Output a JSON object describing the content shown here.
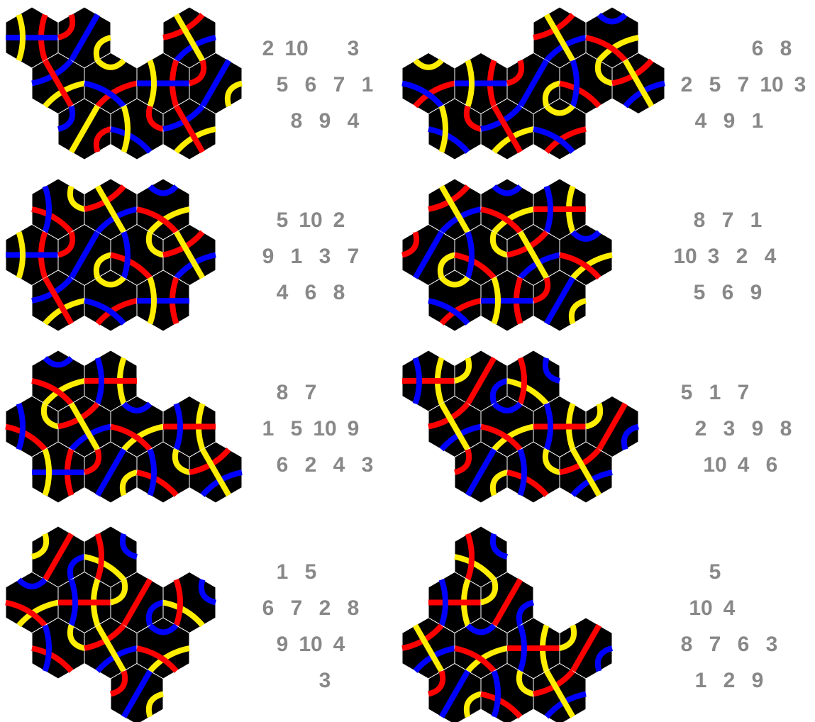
{
  "puzzles": [
    {
      "rows": [
        [
          2,
          10,
          null,
          3
        ],
        [
          5,
          6,
          7,
          1
        ],
        [
          8,
          9,
          4
        ]
      ]
    },
    {
      "rows": [
        [
          null,
          null,
          6,
          8
        ],
        [
          2,
          5,
          7,
          10,
          3
        ],
        [
          4,
          9,
          1
        ]
      ]
    },
    {
      "rows": [
        [
          5,
          10,
          2
        ],
        [
          9,
          1,
          3,
          7
        ],
        [
          4,
          6,
          8
        ]
      ]
    },
    {
      "rows": [
        [
          8,
          7,
          1
        ],
        [
          10,
          3,
          2,
          4
        ],
        [
          5,
          6,
          9
        ]
      ]
    },
    {
      "rows": [
        [
          8,
          7
        ],
        [
          1,
          5,
          10,
          9
        ],
        [
          6,
          2,
          4,
          3
        ]
      ]
    },
    {
      "rows": [
        [
          5,
          1,
          7
        ],
        [
          2,
          3,
          9,
          8
        ],
        [
          10,
          4,
          6
        ]
      ]
    },
    {
      "rows": [
        [
          1,
          5
        ],
        [
          6,
          7,
          2,
          8
        ],
        [
          9,
          10,
          4
        ],
        [
          null,
          3
        ]
      ]
    },
    {
      "rows": [
        [
          5
        ],
        [
          10,
          4
        ],
        [
          8,
          7,
          6,
          3
        ],
        [
          1,
          2,
          9
        ]
      ]
    }
  ]
}
